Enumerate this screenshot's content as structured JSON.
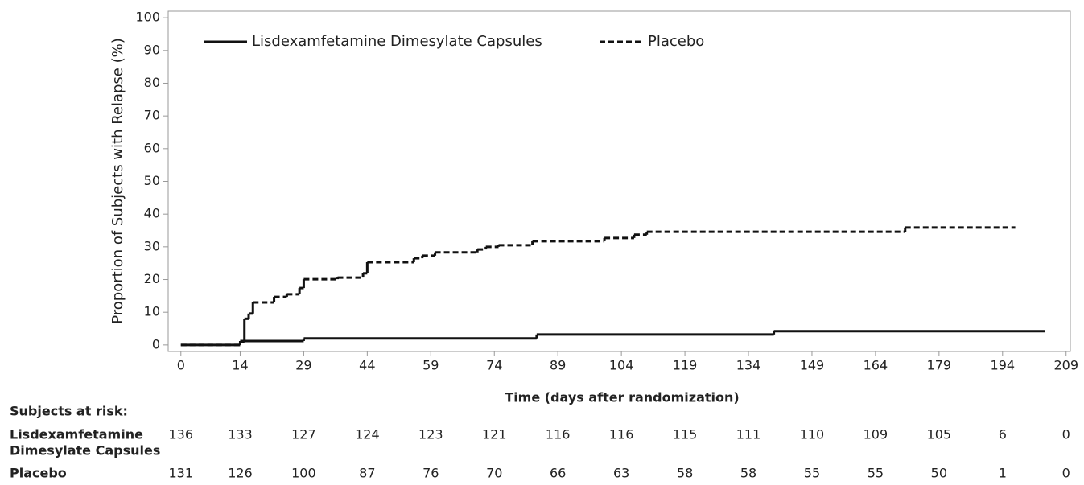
{
  "chart_data": {
    "type": "line",
    "step": true,
    "xlabel": "Time (days after randomization)",
    "ylabel": "Proportion of Subjects with Relapse (%)",
    "xlim": [
      -3,
      210
    ],
    "ylim": [
      -2,
      102
    ],
    "xticks": [
      0,
      14,
      29,
      44,
      59,
      74,
      89,
      104,
      119,
      134,
      149,
      164,
      179,
      194,
      209
    ],
    "yticks": [
      0,
      10,
      20,
      30,
      40,
      50,
      60,
      70,
      80,
      90,
      100
    ],
    "series": [
      {
        "name": "Lisdexamfetamine Dimesylate Capsules",
        "color": "#111111",
        "dash": false,
        "x": [
          0,
          14,
          29,
          84,
          140,
          204
        ],
        "values": [
          0,
          1.2,
          2,
          3.2,
          4.2,
          4.2
        ]
      },
      {
        "name": "Placebo",
        "color": "#111111",
        "dash": true,
        "x": [
          0,
          14,
          15,
          16,
          17,
          22,
          25,
          28,
          29,
          37,
          43,
          44,
          55,
          57,
          60,
          70,
          72,
          75,
          83,
          100,
          107,
          110,
          171,
          197
        ],
        "values": [
          0,
          1,
          8,
          9.6,
          13,
          14.7,
          15.5,
          17.4,
          20.1,
          20.6,
          21.9,
          25.3,
          26.5,
          27.3,
          28.3,
          29.2,
          30,
          30.5,
          31.7,
          32.7,
          33.7,
          34.6,
          35.9,
          35.9
        ]
      }
    ],
    "risk_table": {
      "title": "Subjects at risk:",
      "rows": [
        {
          "label_lines": [
            "Lisdexamfetamine",
            "Dimesylate Capsules"
          ],
          "values": [
            136,
            133,
            127,
            124,
            123,
            121,
            116,
            116,
            115,
            111,
            110,
            109,
            105,
            6,
            0
          ]
        },
        {
          "label_lines": [
            "Placebo"
          ],
          "values": [
            131,
            126,
            100,
            87,
            76,
            70,
            66,
            63,
            58,
            58,
            55,
            55,
            50,
            1,
            0
          ]
        }
      ]
    }
  }
}
